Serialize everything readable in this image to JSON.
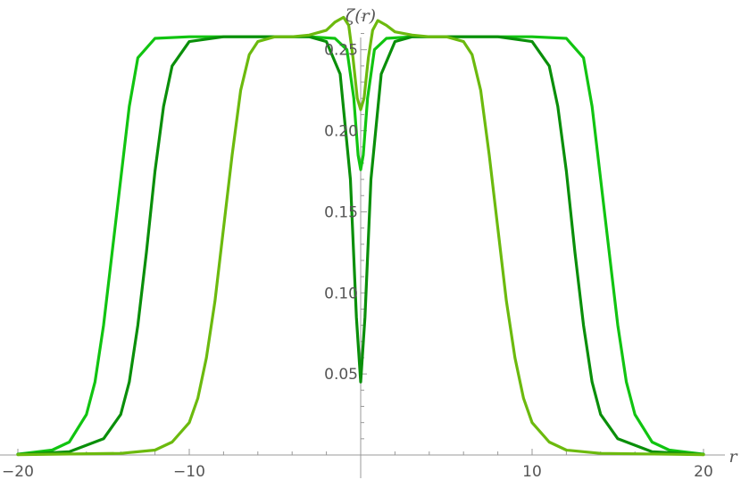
{
  "chart_data": {
    "type": "line",
    "title": "",
    "xlabel": "r",
    "ylabel": "ζ(r)",
    "xlim": [
      -20,
      20
    ],
    "ylim": [
      0,
      0.27
    ],
    "x_ticks": [
      -20,
      -10,
      10,
      20
    ],
    "y_ticks": [
      0.05,
      0.1,
      0.15,
      0.2,
      0.25
    ],
    "x_tick_labels": [
      "−20",
      "−10",
      "10",
      "20"
    ],
    "y_tick_labels": [
      "0.05",
      "0.10",
      "0.15",
      "0.20",
      "0.25"
    ],
    "grid": false,
    "legend": "none",
    "series": [
      {
        "color": "#11c411",
        "points": [
          [
            -20,
            0.0005
          ],
          [
            -18,
            0.003
          ],
          [
            -17,
            0.008
          ],
          [
            -16,
            0.025
          ],
          [
            -15.5,
            0.045
          ],
          [
            -15,
            0.08
          ],
          [
            -14.5,
            0.125
          ],
          [
            -14,
            0.17
          ],
          [
            -13.5,
            0.215
          ],
          [
            -13,
            0.245
          ],
          [
            -12,
            0.257
          ],
          [
            -10,
            0.258
          ],
          [
            -5,
            0.258
          ],
          [
            -3,
            0.258
          ],
          [
            -1.5,
            0.257
          ],
          [
            -0.8,
            0.25
          ],
          [
            -0.4,
            0.22
          ],
          [
            -0.15,
            0.185
          ],
          [
            0,
            0.176
          ],
          [
            0.15,
            0.185
          ],
          [
            0.4,
            0.22
          ],
          [
            0.8,
            0.25
          ],
          [
            1.5,
            0.257
          ],
          [
            3,
            0.258
          ],
          [
            5,
            0.258
          ],
          [
            10,
            0.258
          ],
          [
            12,
            0.257
          ],
          [
            13,
            0.245
          ],
          [
            13.5,
            0.215
          ],
          [
            14,
            0.17
          ],
          [
            14.5,
            0.125
          ],
          [
            15,
            0.08
          ],
          [
            15.5,
            0.045
          ],
          [
            16,
            0.025
          ],
          [
            17,
            0.008
          ],
          [
            18,
            0.003
          ],
          [
            20,
            0.0005
          ]
        ]
      },
      {
        "color": "#0a8f0a",
        "points": [
          [
            -20,
            0.0003
          ],
          [
            -17,
            0.002
          ],
          [
            -15,
            0.01
          ],
          [
            -14,
            0.025
          ],
          [
            -13.5,
            0.045
          ],
          [
            -13,
            0.08
          ],
          [
            -12.5,
            0.125
          ],
          [
            -12,
            0.175
          ],
          [
            -11.5,
            0.215
          ],
          [
            -11,
            0.24
          ],
          [
            -10,
            0.255
          ],
          [
            -8,
            0.258
          ],
          [
            -5,
            0.258
          ],
          [
            -3,
            0.258
          ],
          [
            -2,
            0.255
          ],
          [
            -1.2,
            0.235
          ],
          [
            -0.6,
            0.17
          ],
          [
            -0.25,
            0.085
          ],
          [
            0,
            0.045
          ],
          [
            0.25,
            0.085
          ],
          [
            0.6,
            0.17
          ],
          [
            1.2,
            0.235
          ],
          [
            2,
            0.255
          ],
          [
            3,
            0.258
          ],
          [
            5,
            0.258
          ],
          [
            8,
            0.258
          ],
          [
            10,
            0.255
          ],
          [
            11,
            0.24
          ],
          [
            11.5,
            0.215
          ],
          [
            12,
            0.175
          ],
          [
            12.5,
            0.125
          ],
          [
            13,
            0.08
          ],
          [
            13.5,
            0.045
          ],
          [
            14,
            0.025
          ],
          [
            15,
            0.01
          ],
          [
            17,
            0.002
          ],
          [
            20,
            0.0003
          ]
        ]
      },
      {
        "color": "#6cba0e",
        "points": [
          [
            -20,
            0.0002
          ],
          [
            -14,
            0.001
          ],
          [
            -12,
            0.003
          ],
          [
            -11,
            0.008
          ],
          [
            -10,
            0.02
          ],
          [
            -9.5,
            0.035
          ],
          [
            -9,
            0.06
          ],
          [
            -8.5,
            0.095
          ],
          [
            -8,
            0.14
          ],
          [
            -7.5,
            0.185
          ],
          [
            -7,
            0.225
          ],
          [
            -6.5,
            0.247
          ],
          [
            -6,
            0.255
          ],
          [
            -5,
            0.258
          ],
          [
            -4,
            0.258
          ],
          [
            -3,
            0.259
          ],
          [
            -2,
            0.262
          ],
          [
            -1.5,
            0.267
          ],
          [
            -1,
            0.27
          ],
          [
            -0.7,
            0.265
          ],
          [
            -0.45,
            0.245
          ],
          [
            -0.2,
            0.22
          ],
          [
            0,
            0.213
          ],
          [
            0.2,
            0.22
          ],
          [
            0.45,
            0.245
          ],
          [
            0.7,
            0.262
          ],
          [
            1,
            0.268
          ],
          [
            1.5,
            0.265
          ],
          [
            2,
            0.261
          ],
          [
            3,
            0.259
          ],
          [
            4,
            0.258
          ],
          [
            5,
            0.258
          ],
          [
            6,
            0.255
          ],
          [
            6.5,
            0.247
          ],
          [
            7,
            0.225
          ],
          [
            7.5,
            0.185
          ],
          [
            8,
            0.14
          ],
          [
            8.5,
            0.095
          ],
          [
            9,
            0.06
          ],
          [
            9.5,
            0.035
          ],
          [
            10,
            0.02
          ],
          [
            11,
            0.008
          ],
          [
            12,
            0.003
          ],
          [
            14,
            0.001
          ],
          [
            20,
            0.0002
          ]
        ]
      }
    ]
  }
}
